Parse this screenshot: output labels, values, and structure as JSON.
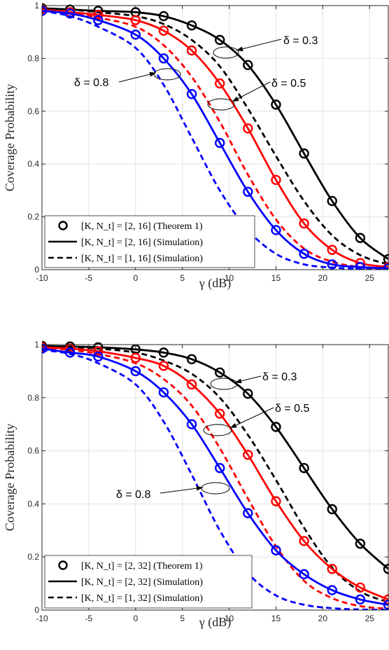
{
  "charts": [
    {
      "type": "line",
      "xlabel": "γ (dB)",
      "ylabel": "Coverage Probability",
      "xlim": [
        -10,
        27
      ],
      "ylim": [
        0,
        1
      ],
      "xticks": [
        "-10",
        "-5",
        "0",
        "5",
        "10",
        "15",
        "20",
        "25"
      ],
      "yticks": [
        "0",
        "0.2",
        "0.4",
        "0.6",
        "0.8",
        "1"
      ],
      "grid": true,
      "legend_position": "bottom-left",
      "legend": [
        {
          "label": "[K, N_t] = [2, 16] (Theorem 1)",
          "style": "circle"
        },
        {
          "label": "[K, N_t] = [2, 16] (Simulation)",
          "style": "solid"
        },
        {
          "label": "[K, N_t] = [1, 16] (Simulation)",
          "style": "dashed"
        }
      ],
      "annotations": [
        {
          "label": "δ = 0.3",
          "curve": "delta_0.3"
        },
        {
          "label": "δ = 0.5",
          "curve": "delta_0.5"
        },
        {
          "label": "δ = 0.8",
          "curve": "delta_0.8"
        }
      ],
      "series": [
        {
          "delta": "0.3",
          "color": "#000000",
          "style": "solid",
          "markers": true,
          "x": [
            -10,
            -7,
            -4,
            0,
            3,
            6,
            9,
            12,
            15,
            18,
            21,
            24,
            27
          ],
          "y": [
            0.99,
            0.985,
            0.98,
            0.975,
            0.96,
            0.925,
            0.87,
            0.775,
            0.625,
            0.44,
            0.26,
            0.12,
            0.04
          ]
        },
        {
          "delta": "0.3",
          "color": "#000000",
          "style": "dashed",
          "markers": false,
          "x": [
            -10,
            -7,
            -4,
            0,
            3,
            6,
            9,
            12,
            15,
            18,
            21,
            24,
            27
          ],
          "y": [
            0.99,
            0.985,
            0.975,
            0.96,
            0.93,
            0.87,
            0.77,
            0.61,
            0.43,
            0.26,
            0.13,
            0.055,
            0.02
          ]
        },
        {
          "delta": "0.5",
          "color": "#ff0000",
          "style": "solid",
          "markers": true,
          "x": [
            -10,
            -7,
            -4,
            0,
            3,
            6,
            9,
            12,
            15,
            18,
            21,
            24,
            27
          ],
          "y": [
            0.985,
            0.975,
            0.965,
            0.945,
            0.905,
            0.83,
            0.705,
            0.535,
            0.34,
            0.175,
            0.075,
            0.025,
            0.01
          ]
        },
        {
          "delta": "0.5",
          "color": "#ff0000",
          "style": "dashed",
          "markers": false,
          "x": [
            -10,
            -7,
            -4,
            0,
            3,
            6,
            9,
            12,
            15,
            18,
            21,
            24,
            27
          ],
          "y": [
            0.985,
            0.975,
            0.955,
            0.92,
            0.85,
            0.73,
            0.56,
            0.36,
            0.19,
            0.08,
            0.03,
            0.01,
            0.005
          ]
        },
        {
          "delta": "0.8",
          "color": "#0000ff",
          "style": "solid",
          "markers": true,
          "x": [
            -10,
            -7,
            -4,
            0,
            3,
            6,
            9,
            12,
            15,
            18,
            21,
            24,
            27
          ],
          "y": [
            0.98,
            0.97,
            0.945,
            0.89,
            0.8,
            0.665,
            0.48,
            0.295,
            0.15,
            0.06,
            0.02,
            0.01,
            0.005
          ]
        },
        {
          "delta": "0.8",
          "color": "#0000ff",
          "style": "dashed",
          "markers": false,
          "x": [
            -10,
            -7,
            -4,
            0,
            3,
            6,
            9,
            12,
            15,
            18,
            21,
            24,
            27
          ],
          "y": [
            0.98,
            0.96,
            0.92,
            0.84,
            0.7,
            0.5,
            0.3,
            0.15,
            0.06,
            0.02,
            0.008,
            0.003,
            0.001
          ]
        }
      ]
    },
    {
      "type": "line",
      "xlabel": "γ (dB)",
      "ylabel": "Coverage Probability",
      "xlim": [
        -10,
        27
      ],
      "ylim": [
        0,
        1
      ],
      "xticks": [
        "-10",
        "-5",
        "0",
        "5",
        "10",
        "15",
        "20",
        "25"
      ],
      "yticks": [
        "0",
        "0.2",
        "0.4",
        "0.6",
        "0.8",
        "1"
      ],
      "grid": true,
      "legend_position": "bottom-left",
      "legend": [
        {
          "label": "[K, N_t] = [2, 32] (Theorem 1)",
          "style": "circle"
        },
        {
          "label": "[K, N_t] = [2, 32] (Simulation)",
          "style": "solid"
        },
        {
          "label": "[K, N_t] = [1, 32] (Simulation)",
          "style": "dashed"
        }
      ],
      "annotations": [
        {
          "label": "δ = 0.3",
          "curve": "delta_0.3"
        },
        {
          "label": "δ = 0.5",
          "curve": "delta_0.5"
        },
        {
          "label": "δ = 0.8",
          "curve": "delta_0.8"
        }
      ],
      "series": [
        {
          "delta": "0.3",
          "color": "#000000",
          "style": "solid",
          "markers": true,
          "x": [
            -10,
            -7,
            -4,
            0,
            3,
            6,
            9,
            12,
            15,
            18,
            21,
            24,
            27
          ],
          "y": [
            0.995,
            0.993,
            0.99,
            0.982,
            0.97,
            0.945,
            0.895,
            0.815,
            0.69,
            0.535,
            0.38,
            0.25,
            0.155
          ]
        },
        {
          "delta": "0.3",
          "color": "#000000",
          "style": "dashed",
          "markers": false,
          "x": [
            -10,
            -7,
            -4,
            0,
            3,
            6,
            9,
            12,
            15,
            18,
            21,
            24,
            27
          ],
          "y": [
            0.995,
            0.99,
            0.985,
            0.97,
            0.94,
            0.89,
            0.8,
            0.66,
            0.49,
            0.31,
            0.16,
            0.07,
            0.03
          ]
        },
        {
          "delta": "0.5",
          "color": "#ff0000",
          "style": "solid",
          "markers": true,
          "x": [
            -10,
            -7,
            -4,
            0,
            3,
            6,
            9,
            12,
            15,
            18,
            21,
            24,
            27
          ],
          "y": [
            0.99,
            0.985,
            0.975,
            0.95,
            0.92,
            0.85,
            0.74,
            0.585,
            0.41,
            0.26,
            0.155,
            0.085,
            0.04
          ]
        },
        {
          "delta": "0.5",
          "color": "#ff0000",
          "style": "dashed",
          "markers": false,
          "x": [
            -10,
            -7,
            -4,
            0,
            3,
            6,
            9,
            12,
            15,
            18,
            21,
            24,
            27
          ],
          "y": [
            0.99,
            0.98,
            0.965,
            0.93,
            0.87,
            0.77,
            0.61,
            0.42,
            0.24,
            0.11,
            0.045,
            0.015,
            0.005
          ]
        },
        {
          "delta": "0.8",
          "color": "#0000ff",
          "style": "solid",
          "markers": true,
          "x": [
            -10,
            -7,
            -4,
            0,
            3,
            6,
            9,
            12,
            15,
            18,
            21,
            24,
            27
          ],
          "y": [
            0.985,
            0.97,
            0.955,
            0.9,
            0.82,
            0.7,
            0.535,
            0.365,
            0.225,
            0.135,
            0.075,
            0.04,
            0.02
          ]
        },
        {
          "delta": "0.8",
          "color": "#0000ff",
          "style": "dashed",
          "markers": false,
          "x": [
            -10,
            -7,
            -4,
            0,
            3,
            6,
            9,
            12,
            15,
            18,
            21,
            24,
            27
          ],
          "y": [
            0.98,
            0.965,
            0.93,
            0.85,
            0.71,
            0.51,
            0.3,
            0.14,
            0.055,
            0.02,
            0.007,
            0.002,
            0.001
          ]
        }
      ]
    }
  ]
}
